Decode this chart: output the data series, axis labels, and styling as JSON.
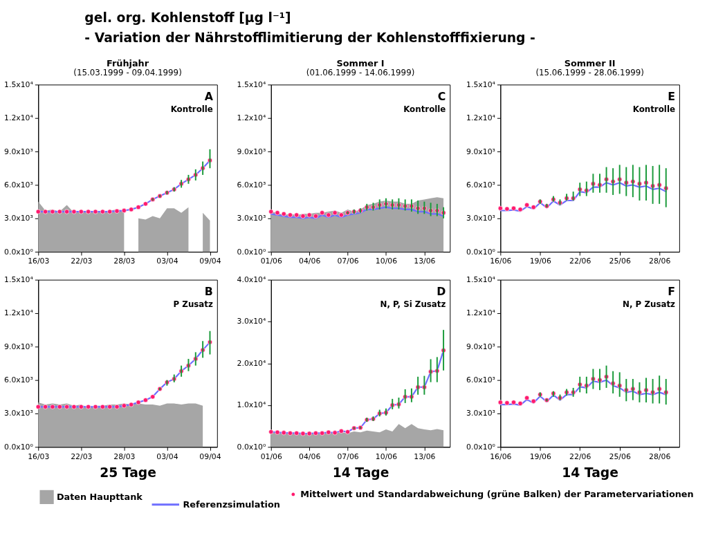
{
  "chart_data": [
    {
      "type": "other",
      "title": "gel. org. Kohlenstoff [µg l⁻¹]",
      "subtitle": "- Variation der Nährstofflimitierung der Kohlenstofffixierung -"
    },
    {
      "type": "line",
      "title": "Frühjahr",
      "subtitle": "(15.03.1999 - 09.04.1999)",
      "annotations": [
        "A",
        "Kontrolle"
      ],
      "x": [
        "1999-03-16",
        "1999-03-17",
        "1999-03-18",
        "1999-03-19",
        "1999-03-20",
        "1999-03-21",
        "1999-03-22",
        "1999-03-23",
        "1999-03-24",
        "1999-03-25",
        "1999-03-26",
        "1999-03-27",
        "1999-03-28",
        "1999-03-29",
        "1999-03-30",
        "1999-03-31",
        "1999-04-01",
        "1999-04-02",
        "1999-04-03",
        "1999-04-04",
        "1999-04-05",
        "1999-04-06",
        "1999-04-07",
        "1999-04-08",
        "1999-04-09"
      ],
      "xlim": [
        "1999-03-16",
        "1999-04-10"
      ],
      "xticks": [
        {
          "value": "1999-03-16",
          "label": "16/03"
        },
        {
          "value": "1999-03-22",
          "label": "22/03"
        },
        {
          "value": "1999-03-28",
          "label": "28/03"
        },
        {
          "value": "1999-04-03",
          "label": "03/04"
        },
        {
          "value": "1999-04-09",
          "label": "09/04"
        }
      ],
      "ylim": [
        0,
        15000
      ],
      "yticks": [
        {
          "value": 0,
          "label": "0.0x10⁰"
        },
        {
          "value": 3000,
          "label": "3.0x10³"
        },
        {
          "value": 6000,
          "label": "6.0x10³"
        },
        {
          "value": 9000,
          "label": "9.0x10³"
        },
        {
          "value": 12000,
          "label": "1.2x10⁴"
        },
        {
          "value": 15000,
          "label": "1.5x10⁴"
        }
      ],
      "series": [
        {
          "type": "area",
          "color": "#a6a6a6",
          "values": [
            4500,
            3700,
            3800,
            3600,
            4200,
            3500,
            3600,
            3600,
            3700,
            3600,
            3700,
            3800,
            3700,
            null,
            3000,
            2900,
            3200,
            3000,
            3900,
            3900,
            3500,
            4000,
            null,
            3500,
            2800
          ]
        },
        {
          "type": "scatter",
          "color": "#ff1a6e",
          "marker": "circle",
          "values": [
            3600,
            3600,
            3600,
            3600,
            3600,
            3600,
            3600,
            3600,
            3600,
            3600,
            3600,
            3650,
            3700,
            3800,
            4000,
            4300,
            4700,
            5000,
            5300,
            5600,
            6100,
            6500,
            6900,
            7500,
            8200
          ],
          "errors": [
            null,
            null,
            null,
            null,
            null,
            null,
            null,
            null,
            null,
            null,
            null,
            null,
            null,
            null,
            null,
            null,
            [
              4600,
              4800
            ],
            [
              4900,
              5100
            ],
            [
              5150,
              5450
            ],
            [
              5400,
              5800
            ],
            [
              5750,
              6450
            ],
            [
              6100,
              6900
            ],
            [
              6400,
              7400
            ],
            [
              6900,
              8100
            ],
            [
              7500,
              9200
            ]
          ]
        },
        {
          "type": "line",
          "color": "#6e6eff",
          "values": [
            3600,
            3600,
            3600,
            3600,
            3600,
            3600,
            3600,
            3600,
            3600,
            3600,
            3600,
            3650,
            3700,
            3800,
            4000,
            4300,
            4700,
            5000,
            5300,
            5600,
            6100,
            6500,
            6900,
            7500,
            8200
          ]
        }
      ]
    },
    {
      "type": "line",
      "title": "Sommer I",
      "subtitle": "(01.06.1999 - 14.06.1999)",
      "annotations": [
        "C",
        "Kontrolle"
      ],
      "x": [
        "1999-06-01",
        "1999-06-01T12:00",
        "1999-06-02",
        "1999-06-02T12:00",
        "1999-06-03",
        "1999-06-03T12:00",
        "1999-06-04",
        "1999-06-04T12:00",
        "1999-06-05",
        "1999-06-05T12:00",
        "1999-06-06",
        "1999-06-06T12:00",
        "1999-06-07",
        "1999-06-07T12:00",
        "1999-06-08",
        "1999-06-08T12:00",
        "1999-06-09",
        "1999-06-09T12:00",
        "1999-06-10",
        "1999-06-10T12:00",
        "1999-06-11",
        "1999-06-11T12:00",
        "1999-06-12",
        "1999-06-12T12:00",
        "1999-06-13",
        "1999-06-13T12:00",
        "1999-06-14",
        "1999-06-14T12:00"
      ],
      "xlim": [
        "1999-06-01",
        "1999-06-15"
      ],
      "xticks": [
        {
          "value": "1999-06-01",
          "label": "01/06"
        },
        {
          "value": "1999-06-04",
          "label": "04/06"
        },
        {
          "value": "1999-06-07",
          "label": "07/06"
        },
        {
          "value": "1999-06-10",
          "label": "10/06"
        },
        {
          "value": "1999-06-13",
          "label": "13/06"
        }
      ],
      "ylim": [
        0,
        15000
      ],
      "yticks": [
        {
          "value": 0,
          "label": "0.0x10⁰"
        },
        {
          "value": 3000,
          "label": "3.0x10³"
        },
        {
          "value": 6000,
          "label": "6.0x10³"
        },
        {
          "value": 9000,
          "label": "9.0x10³"
        },
        {
          "value": 12000,
          "label": "1.2x10⁴"
        },
        {
          "value": 15000,
          "label": "1.5x10⁴"
        }
      ],
      "series": [
        {
          "type": "area",
          "color": "#a6a6a6",
          "values": [
            3600,
            3500,
            3300,
            3400,
            3300,
            3400,
            3400,
            3500,
            3500,
            3600,
            3700,
            3500,
            3800,
            3600,
            3800,
            4200,
            4300,
            4500,
            4600,
            4500,
            4500,
            4300,
            4300,
            4600,
            4700,
            4800,
            4900,
            4800
          ]
        },
        {
          "type": "scatter",
          "color": "#ff1a6e",
          "marker": "circle",
          "values": [
            3600,
            3500,
            3400,
            3300,
            3300,
            3200,
            3300,
            3200,
            3500,
            3300,
            3500,
            3300,
            3500,
            3600,
            3700,
            4000,
            4000,
            4200,
            4300,
            4200,
            4200,
            4100,
            4100,
            3900,
            3900,
            3700,
            3700,
            3500
          ],
          "errors": [
            null,
            null,
            null,
            null,
            null,
            null,
            null,
            null,
            null,
            null,
            null,
            null,
            [
              3400,
              3600
            ],
            [
              3400,
              3800
            ],
            [
              3500,
              3900
            ],
            [
              3700,
              4300
            ],
            [
              3700,
              4400
            ],
            [
              3800,
              4700
            ],
            [
              3900,
              4800
            ],
            [
              3800,
              4700
            ],
            [
              3800,
              4800
            ],
            [
              3700,
              4700
            ],
            [
              3600,
              4700
            ],
            [
              3400,
              4600
            ],
            [
              3400,
              4500
            ],
            [
              3200,
              4400
            ],
            [
              3200,
              4300
            ],
            [
              3000,
              4000
            ]
          ]
        },
        {
          "type": "line",
          "color": "#6e6eff",
          "values": [
            3400,
            3300,
            3200,
            3100,
            3100,
            3000,
            3100,
            3000,
            3300,
            3100,
            3300,
            3100,
            3300,
            3400,
            3500,
            3800,
            3800,
            3900,
            4000,
            3900,
            3900,
            3800,
            3800,
            3600,
            3600,
            3400,
            3400,
            3200
          ]
        }
      ]
    },
    {
      "type": "line",
      "title": "Sommer II",
      "subtitle": "(15.06.1999 - 28.06.1999)",
      "annotations": [
        "E",
        "Kontrolle"
      ],
      "x": [
        "1999-06-16",
        "1999-06-16T12:00",
        "1999-06-17",
        "1999-06-17T12:00",
        "1999-06-18",
        "1999-06-18T12:00",
        "1999-06-19",
        "1999-06-19T12:00",
        "1999-06-20",
        "1999-06-20T12:00",
        "1999-06-21",
        "1999-06-21T12:00",
        "1999-06-22",
        "1999-06-22T12:00",
        "1999-06-23",
        "1999-06-23T12:00",
        "1999-06-24",
        "1999-06-24T12:00",
        "1999-06-25",
        "1999-06-25T12:00",
        "1999-06-26",
        "1999-06-26T12:00",
        "1999-06-27",
        "1999-06-27T12:00",
        "1999-06-28",
        "1999-06-28T12:00"
      ],
      "xlim": [
        "1999-06-16",
        "1999-06-29T12:00"
      ],
      "xticks": [
        {
          "value": "1999-06-16",
          "label": "16/06"
        },
        {
          "value": "1999-06-19",
          "label": "19/06"
        },
        {
          "value": "1999-06-22",
          "label": "22/06"
        },
        {
          "value": "1999-06-25",
          "label": "25/06"
        },
        {
          "value": "1999-06-28",
          "label": "28/06"
        }
      ],
      "ylim": [
        0,
        15000
      ],
      "yticks": [
        {
          "value": 0,
          "label": "0.0x10⁰"
        },
        {
          "value": 3000,
          "label": "3.0x10³"
        },
        {
          "value": 6000,
          "label": "6.0x10³"
        },
        {
          "value": 9000,
          "label": "9.0x10³"
        },
        {
          "value": 12000,
          "label": "1.2x10⁴"
        },
        {
          "value": 15000,
          "label": "1.5x10⁴"
        }
      ],
      "series": [
        {
          "type": "scatter",
          "color": "#ff1a6e",
          "marker": "circle",
          "values": [
            3900,
            3850,
            3900,
            3800,
            4200,
            4000,
            4500,
            4100,
            4700,
            4400,
            4800,
            4800,
            5600,
            5500,
            6100,
            6000,
            6500,
            6300,
            6500,
            6200,
            6300,
            6100,
            6200,
            5900,
            6000,
            5700
          ],
          "errors": [
            null,
            null,
            null,
            null,
            null,
            null,
            [
              4300,
              4700
            ],
            [
              4000,
              4300
            ],
            [
              4500,
              5000
            ],
            [
              4200,
              4700
            ],
            [
              4600,
              5200
            ],
            [
              4600,
              5400
            ],
            [
              5000,
              6200
            ],
            [
              5000,
              6300
            ],
            [
              5300,
              7000
            ],
            [
              5300,
              7000
            ],
            [
              5300,
              7600
            ],
            [
              5100,
              7500
            ],
            [
              5200,
              7800
            ],
            [
              5000,
              7600
            ],
            [
              4900,
              7800
            ],
            [
              4600,
              7600
            ],
            [
              4600,
              7800
            ],
            [
              4300,
              7700
            ],
            [
              4300,
              7800
            ],
            [
              4000,
              7500
            ]
          ]
        },
        {
          "type": "line",
          "color": "#6e6eff",
          "values": [
            3700,
            3700,
            3750,
            3650,
            4050,
            3850,
            4400,
            3950,
            4550,
            4200,
            4600,
            4600,
            5400,
            5300,
            5800,
            5800,
            6200,
            6000,
            6200,
            5900,
            6000,
            5800,
            5900,
            5600,
            5700,
            5400
          ]
        }
      ]
    },
    {
      "type": "line",
      "xlabel": "25 Tage",
      "annotations": [
        "B",
        "P Zusatz"
      ],
      "x": [
        "1999-03-16",
        "1999-03-17",
        "1999-03-18",
        "1999-03-19",
        "1999-03-20",
        "1999-03-21",
        "1999-03-22",
        "1999-03-23",
        "1999-03-24",
        "1999-03-25",
        "1999-03-26",
        "1999-03-27",
        "1999-03-28",
        "1999-03-29",
        "1999-03-30",
        "1999-03-31",
        "1999-04-01",
        "1999-04-02",
        "1999-04-03",
        "1999-04-04",
        "1999-04-05",
        "1999-04-06",
        "1999-04-07",
        "1999-04-08",
        "1999-04-09"
      ],
      "xlim": [
        "1999-03-16",
        "1999-04-10"
      ],
      "xticks": [
        {
          "value": "1999-03-16",
          "label": "16/03"
        },
        {
          "value": "1999-03-22",
          "label": "22/03"
        },
        {
          "value": "1999-03-28",
          "label": "28/03"
        },
        {
          "value": "1999-04-03",
          "label": "03/04"
        },
        {
          "value": "1999-04-09",
          "label": "09/04"
        }
      ],
      "ylim": [
        0,
        15000
      ],
      "yticks": [
        {
          "value": 0,
          "label": "0.0x10⁰"
        },
        {
          "value": 3000,
          "label": "3.0x10³"
        },
        {
          "value": 6000,
          "label": "6.0x10³"
        },
        {
          "value": 9000,
          "label": "9.0x10³"
        },
        {
          "value": 12000,
          "label": "1.2x10⁴"
        },
        {
          "value": 15000,
          "label": "1.5x10⁴"
        }
      ],
      "series": [
        {
          "type": "area",
          "color": "#a6a6a6",
          "values": [
            4000,
            3800,
            3900,
            3800,
            3900,
            3700,
            3800,
            3500,
            3700,
            3700,
            3800,
            3800,
            3900,
            3800,
            3900,
            3800,
            3800,
            3700,
            3900,
            3900,
            3800,
            3900,
            3900,
            3700,
            null
          ]
        },
        {
          "type": "scatter",
          "color": "#ff1a6e",
          "marker": "circle",
          "values": [
            3600,
            3600,
            3600,
            3600,
            3600,
            3600,
            3600,
            3600,
            3600,
            3600,
            3600,
            3600,
            3700,
            3800,
            4000,
            4200,
            4500,
            5200,
            5800,
            6100,
            6800,
            7300,
            7900,
            8700,
            9400
          ],
          "errors": [
            null,
            null,
            null,
            null,
            null,
            null,
            null,
            null,
            null,
            null,
            null,
            null,
            null,
            null,
            null,
            null,
            null,
            [
              5100,
              5300
            ],
            [
              5500,
              6000
            ],
            [
              5800,
              6500
            ],
            [
              6300,
              7300
            ],
            [
              6800,
              7900
            ],
            [
              7300,
              8500
            ],
            [
              8000,
              9500
            ],
            [
              8300,
              10400
            ]
          ]
        },
        {
          "type": "line",
          "color": "#6e6eff",
          "values": [
            3600,
            3600,
            3600,
            3600,
            3600,
            3600,
            3600,
            3600,
            3600,
            3600,
            3600,
            3600,
            3700,
            3800,
            4000,
            4200,
            4500,
            5200,
            5800,
            6100,
            6800,
            7300,
            7900,
            8700,
            9400
          ]
        }
      ]
    },
    {
      "type": "line",
      "xlabel": "14 Tage",
      "annotations": [
        "D",
        "N, P, Si Zusatz"
      ],
      "legend": "bottom",
      "x": [
        "1999-06-01",
        "1999-06-01T12:00",
        "1999-06-02",
        "1999-06-02T12:00",
        "1999-06-03",
        "1999-06-03T12:00",
        "1999-06-04",
        "1999-06-04T12:00",
        "1999-06-05",
        "1999-06-05T12:00",
        "1999-06-06",
        "1999-06-06T12:00",
        "1999-06-07",
        "1999-06-07T12:00",
        "1999-06-08",
        "1999-06-08T12:00",
        "1999-06-09",
        "1999-06-09T12:00",
        "1999-06-10",
        "1999-06-10T12:00",
        "1999-06-11",
        "1999-06-11T12:00",
        "1999-06-12",
        "1999-06-12T12:00",
        "1999-06-13",
        "1999-06-13T12:00",
        "1999-06-14",
        "1999-06-14T12:00"
      ],
      "xlim": [
        "1999-06-01",
        "1999-06-15"
      ],
      "xticks": [
        {
          "value": "1999-06-01",
          "label": "01/06"
        },
        {
          "value": "1999-06-04",
          "label": "04/06"
        },
        {
          "value": "1999-06-07",
          "label": "07/06"
        },
        {
          "value": "1999-06-10",
          "label": "10/06"
        },
        {
          "value": "1999-06-13",
          "label": "13/06"
        }
      ],
      "ylim": [
        0,
        40000
      ],
      "yticks": [
        {
          "value": 0,
          "label": "0.0x10⁰"
        },
        {
          "value": 10000,
          "label": "1.0x10⁴"
        },
        {
          "value": 20000,
          "label": "2.0x10⁴"
        },
        {
          "value": 30000,
          "label": "3.0x10⁴"
        },
        {
          "value": 40000,
          "label": "4.0x10⁴"
        }
      ],
      "series": [
        {
          "type": "area",
          "name": "Daten Haupttank",
          "color": "#a6a6a6",
          "values": [
            3500,
            3300,
            3400,
            3200,
            3300,
            3000,
            3200,
            3300,
            3200,
            3400,
            3300,
            3500,
            3300,
            3700,
            3500,
            3900,
            3700,
            3500,
            4200,
            3700,
            5500,
            4500,
            5500,
            4500,
            4200,
            4000,
            4300,
            4000
          ]
        },
        {
          "type": "scatter",
          "name": "Mittelwert und Standardabweichung (grüne Balken) der Parametervariationen",
          "color": "#ff1a6e",
          "marker": "circle",
          "values": [
            3600,
            3500,
            3400,
            3300,
            3300,
            3200,
            3200,
            3300,
            3300,
            3500,
            3400,
            3800,
            3600,
            4500,
            4600,
            6500,
            6700,
            8000,
            8200,
            10000,
            10200,
            12000,
            12000,
            14300,
            14300,
            18000,
            18200,
            23100
          ],
          "errors": [
            null,
            null,
            null,
            null,
            null,
            null,
            null,
            null,
            null,
            null,
            null,
            null,
            null,
            [
              4300,
              4700
            ],
            [
              4400,
              4800
            ],
            [
              6000,
              7000
            ],
            [
              6200,
              7300
            ],
            [
              7300,
              8900
            ],
            [
              7500,
              9200
            ],
            [
              9000,
              11500
            ],
            [
              9200,
              11800
            ],
            [
              10500,
              13800
            ],
            [
              10700,
              14000
            ],
            [
              12500,
              16800
            ],
            [
              12500,
              17000
            ],
            [
              15500,
              21000
            ],
            [
              15500,
              21500
            ],
            [
              18300,
              28000
            ]
          ]
        },
        {
          "type": "line",
          "name": "Referenzsimulation",
          "color": "#6e6eff",
          "values": [
            3600,
            3500,
            3400,
            3300,
            3300,
            3200,
            3200,
            3300,
            3300,
            3500,
            3400,
            3800,
            3600,
            4500,
            4600,
            6500,
            6700,
            8000,
            8200,
            10000,
            10200,
            12000,
            12000,
            14300,
            14300,
            18000,
            18200,
            23100
          ]
        }
      ]
    },
    {
      "type": "line",
      "xlabel": "14 Tage",
      "annotations": [
        "F",
        "N, P Zusatz"
      ],
      "x": [
        "1999-06-16",
        "1999-06-16T12:00",
        "1999-06-17",
        "1999-06-17T12:00",
        "1999-06-18",
        "1999-06-18T12:00",
        "1999-06-19",
        "1999-06-19T12:00",
        "1999-06-20",
        "1999-06-20T12:00",
        "1999-06-21",
        "1999-06-21T12:00",
        "1999-06-22",
        "1999-06-22T12:00",
        "1999-06-23",
        "1999-06-23T12:00",
        "1999-06-24",
        "1999-06-24T12:00",
        "1999-06-25",
        "1999-06-25T12:00",
        "1999-06-26",
        "1999-06-26T12:00",
        "1999-06-27",
        "1999-06-27T12:00",
        "1999-06-28",
        "1999-06-28T12:00"
      ],
      "xlim": [
        "1999-06-16",
        "1999-06-29T12:00"
      ],
      "xticks": [
        {
          "value": "1999-06-16",
          "label": "16/06"
        },
        {
          "value": "1999-06-19",
          "label": "19/06"
        },
        {
          "value": "1999-06-22",
          "label": "22/06"
        },
        {
          "value": "1999-06-25",
          "label": "25/06"
        },
        {
          "value": "1999-06-28",
          "label": "28/06"
        }
      ],
      "ylim": [
        0,
        15000
      ],
      "yticks": [
        {
          "value": 0,
          "label": "0.0x10⁰"
        },
        {
          "value": 3000,
          "label": "3.0x10³"
        },
        {
          "value": 6000,
          "label": "6.0x10³"
        },
        {
          "value": 9000,
          "label": "9.0x10³"
        },
        {
          "value": 12000,
          "label": "1.2x10⁴"
        },
        {
          "value": 15000,
          "label": "1.5x10⁴"
        }
      ],
      "series": [
        {
          "type": "scatter",
          "color": "#ff1a6e",
          "marker": "circle",
          "values": [
            4000,
            3950,
            4000,
            3900,
            4400,
            4100,
            4700,
            4200,
            4800,
            4400,
            4900,
            4900,
            5600,
            5500,
            6100,
            6000,
            6300,
            5700,
            5500,
            5100,
            5200,
            4900,
            5100,
            4900,
            5200,
            4900
          ],
          "errors": [
            null,
            null,
            null,
            null,
            null,
            null,
            [
              4500,
              4900
            ],
            [
              4100,
              4300
            ],
            [
              4500,
              5000
            ],
            [
              4200,
              4700
            ],
            [
              4600,
              5200
            ],
            [
              4500,
              5300
            ],
            [
              4900,
              6300
            ],
            [
              4800,
              6300
            ],
            [
              5200,
              7000
            ],
            [
              5100,
              7000
            ],
            [
              5300,
              7300
            ],
            [
              4800,
              6800
            ],
            [
              4500,
              6700
            ],
            [
              4100,
              6100
            ],
            [
              4200,
              6100
            ],
            [
              4000,
              5800
            ],
            [
              4000,
              6200
            ],
            [
              3900,
              6100
            ],
            [
              3900,
              6400
            ],
            [
              3800,
              6100
            ]
          ]
        },
        {
          "type": "line",
          "color": "#6e6eff",
          "values": [
            3800,
            3800,
            3850,
            3750,
            4250,
            3950,
            4550,
            4050,
            4650,
            4200,
            4700,
            4700,
            5400,
            5300,
            5900,
            5800,
            6000,
            5500,
            5300,
            4900,
            5000,
            4700,
            4800,
            4700,
            4900,
            4700
          ]
        }
      ]
    }
  ]
}
